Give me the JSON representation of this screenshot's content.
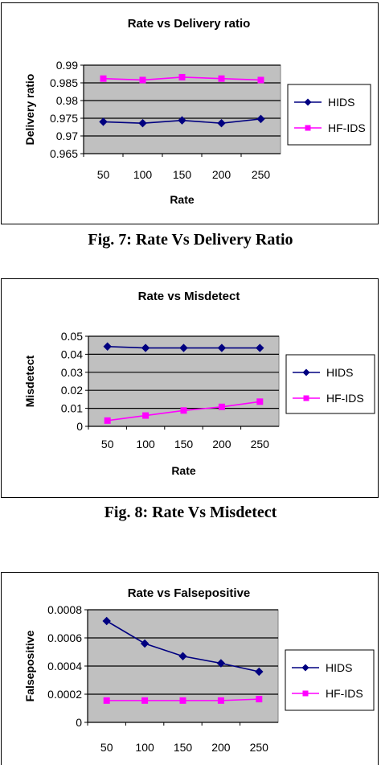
{
  "captions": [
    "Fig. 7: Rate Vs Delivery Ratio",
    "Fig. 8: Rate Vs Misdetect"
  ],
  "legend_colors": {
    "HIDS": "#000080",
    "HF-IDS": "#ff00ff"
  },
  "plot_background": "#c0c0c0",
  "chart_data": [
    {
      "type": "line",
      "title": "Rate vs Delivery ratio",
      "xlabel": "Rate",
      "ylabel": "Delivery ratio",
      "categories": [
        "50",
        "100",
        "150",
        "200",
        "250"
      ],
      "ylim": [
        0.965,
        0.99
      ],
      "yticks": [
        "0.965",
        "0.97",
        "0.975",
        "0.98",
        "0.985",
        "0.99"
      ],
      "legend": "right",
      "grid": true,
      "series": [
        {
          "name": "HIDS",
          "values": [
            0.974,
            0.9736,
            0.9744,
            0.9736,
            0.9748
          ]
        },
        {
          "name": "HF-IDS",
          "values": [
            0.9862,
            0.9858,
            0.9866,
            0.9862,
            0.9858
          ]
        }
      ]
    },
    {
      "type": "line",
      "title": "Rate vs Misdetect",
      "xlabel": "Rate",
      "ylabel": "Misdetect",
      "categories": [
        "50",
        "100",
        "150",
        "200",
        "250"
      ],
      "ylim": [
        0,
        0.05
      ],
      "yticks": [
        "0",
        "0.01",
        "0.02",
        "0.03",
        "0.04",
        "0.05"
      ],
      "legend": "right",
      "grid": true,
      "series": [
        {
          "name": "HIDS",
          "values": [
            0.0443,
            0.0435,
            0.0435,
            0.0435,
            0.0435
          ]
        },
        {
          "name": "HF-IDS",
          "values": [
            0.0032,
            0.006,
            0.0088,
            0.0108,
            0.0137
          ]
        }
      ]
    },
    {
      "type": "line",
      "title": "Rate vs Falsepositive",
      "xlabel": "",
      "ylabel": "Falsepositive",
      "categories": [
        "50",
        "100",
        "150",
        "200",
        "250"
      ],
      "ylim": [
        0,
        0.0008
      ],
      "yticks": [
        "0",
        "0.0002",
        "0.0004",
        "0.0006",
        "0.0008"
      ],
      "legend": "right",
      "grid": true,
      "series": [
        {
          "name": "HIDS",
          "values": [
            0.00072,
            0.00056,
            0.00047,
            0.00042,
            0.00036
          ]
        },
        {
          "name": "HF-IDS",
          "values": [
            0.000155,
            0.000155,
            0.000155,
            0.000155,
            0.000165
          ]
        }
      ]
    }
  ]
}
